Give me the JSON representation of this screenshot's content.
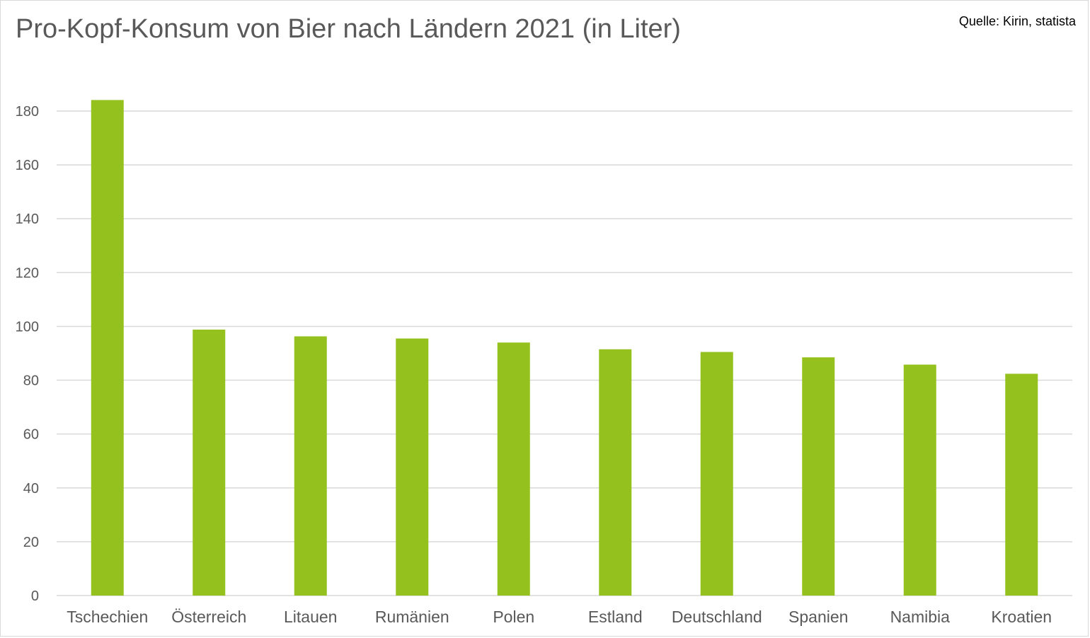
{
  "chart_data": {
    "type": "bar",
    "title": "Pro-Kopf-Konsum von Bier nach Ländern 2021 (in Liter)",
    "source": "Quelle: Kirin, statista",
    "xlabel": "",
    "ylabel": "",
    "categories": [
      "Tschechien",
      "Österreich",
      "Litauen",
      "Rumänien",
      "Polen",
      "Estland",
      "Deutschland",
      "Spanien",
      "Namibia",
      "Kroatien"
    ],
    "values": [
      184.1,
      98.8,
      96.3,
      95.5,
      94.0,
      91.5,
      90.5,
      88.5,
      85.8,
      82.4
    ],
    "ylim": [
      0,
      180
    ],
    "yticks": [
      "0",
      "20",
      "40",
      "60",
      "80",
      "100",
      "120",
      "140",
      "160",
      "180"
    ],
    "grid": true,
    "bar_color": "#95c11f"
  }
}
